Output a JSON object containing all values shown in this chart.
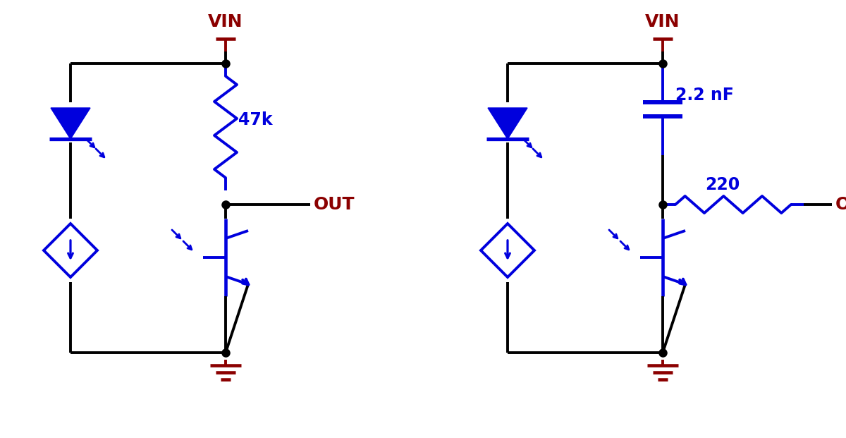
{
  "bg_color": "#ffffff",
  "blue": "#0000dd",
  "dark_red": "#8b0000",
  "black": "#000000",
  "lw": 2.8,
  "lw_thick": 3.5,
  "fig_width": 12.0,
  "fig_height": 6.21,
  "circuit1": {
    "vin_label": "VIN",
    "out_label": "OUT",
    "resistor_label": "47k"
  },
  "circuit2": {
    "vin_label": "VIN",
    "out_label": "OUT",
    "cap_label": "2.2 nF",
    "resistor_label": "220"
  }
}
